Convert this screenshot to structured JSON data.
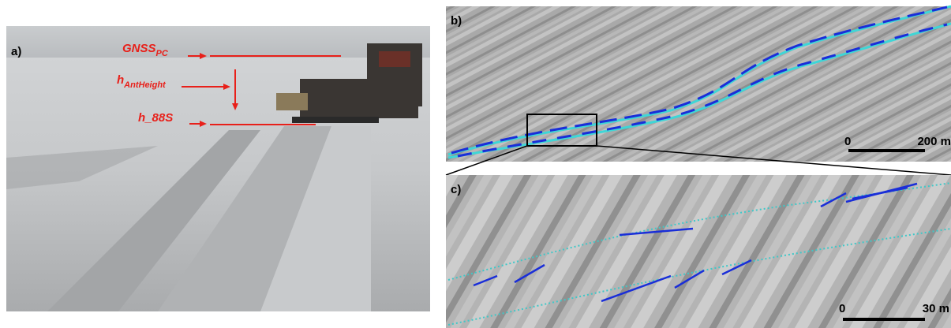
{
  "panels": {
    "a": {
      "label": "a)",
      "annotations": [
        {
          "main": "GNSS",
          "sub": "PC"
        },
        {
          "main": "h",
          "sub": "AntHeight"
        },
        {
          "main": "h_88S"
        }
      ]
    },
    "b": {
      "label": "b)",
      "scale_bar": {
        "start": "0",
        "end": "200 m"
      }
    },
    "c": {
      "label": "c)",
      "scale_bar": {
        "start": "0",
        "end": "30 m"
      }
    }
  }
}
